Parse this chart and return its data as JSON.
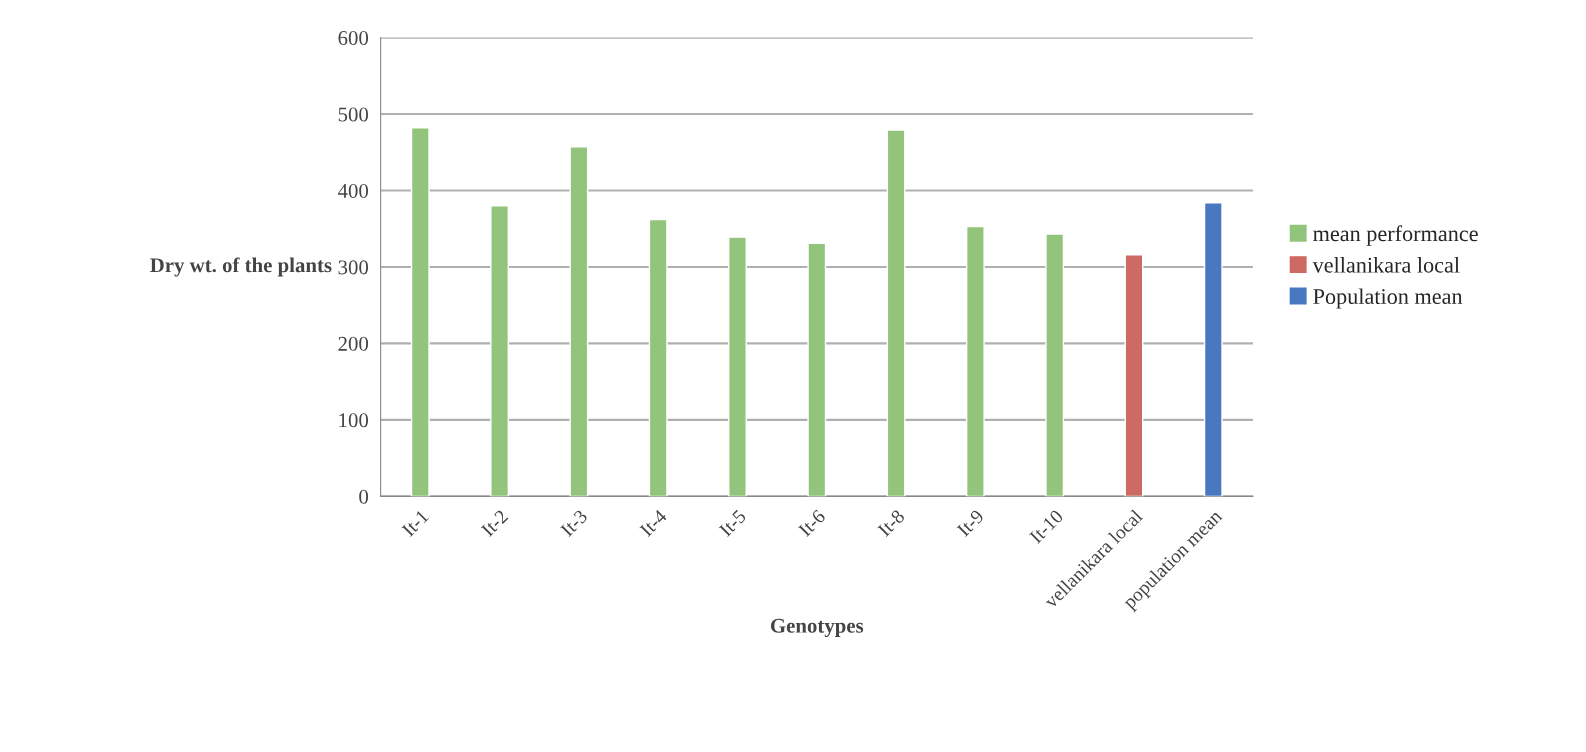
{
  "chart_data": {
    "type": "bar",
    "xlabel": "Genotypes",
    "ylabel": "Dry wt. of the plants",
    "categories": [
      "It-1",
      "It-2",
      "It-3",
      "It-4",
      "It-5",
      "It-6",
      "It-8",
      "It-9",
      "It-10",
      "vellanikara local",
      "population mean"
    ],
    "series": [
      {
        "name": "mean performance",
        "color": "#92c47c",
        "values": [
          482,
          380,
          457,
          362,
          339,
          331,
          479,
          353,
          343,
          null,
          null
        ]
      },
      {
        "name": "vellanikara local",
        "color": "#cd6a63",
        "values": [
          null,
          null,
          null,
          null,
          null,
          null,
          null,
          null,
          null,
          316,
          null
        ]
      },
      {
        "name": "Population mean",
        "color": "#4a78c0",
        "values": [
          null,
          null,
          null,
          null,
          null,
          null,
          null,
          null,
          null,
          null,
          384
        ]
      }
    ],
    "ylim": [
      0,
      600
    ],
    "yticks": [
      0,
      100,
      200,
      300,
      400,
      500,
      600
    ],
    "grid": "y",
    "legend": "right"
  }
}
